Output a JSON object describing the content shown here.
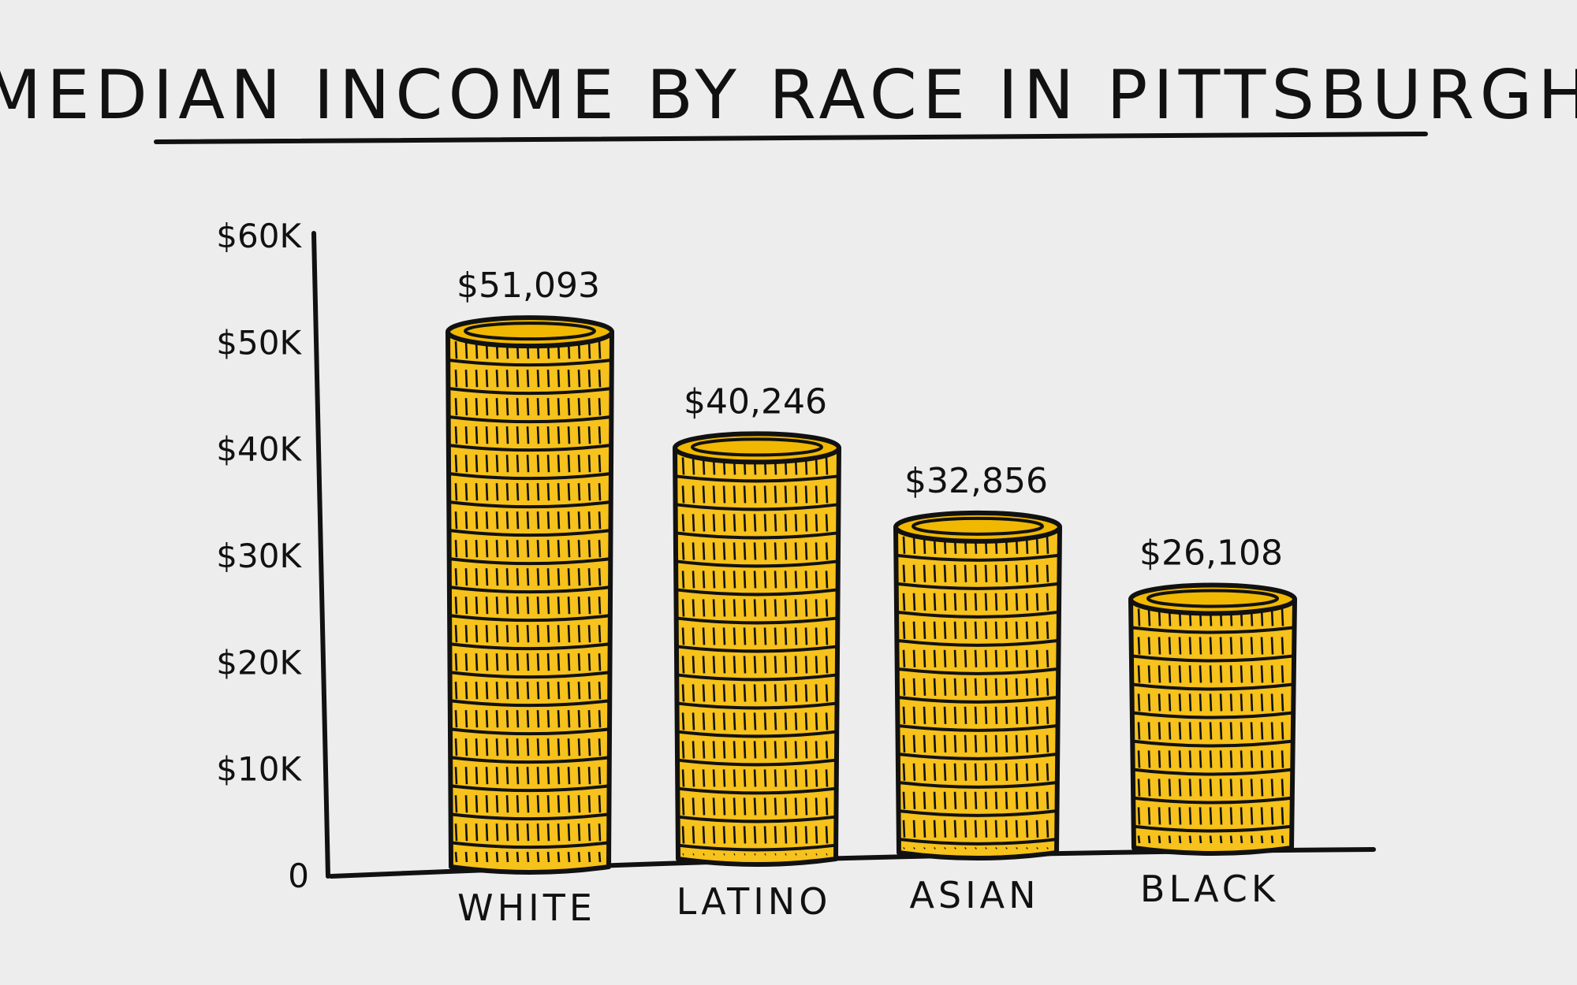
{
  "chart_data": {
    "type": "bar",
    "title": "MEDIAN INCOME BY RACE IN PITTSBURGH",
    "categories": [
      "WHITE",
      "LATINO",
      "ASIAN",
      "BLACK"
    ],
    "values": [
      51093,
      40246,
      32856,
      26108
    ],
    "value_labels": [
      "$51,093",
      "$40,246",
      "$32,856",
      "$26,108"
    ],
    "y_ticks": [
      0,
      10000,
      20000,
      30000,
      40000,
      50000,
      60000
    ],
    "y_tick_labels": [
      "0",
      "$10K",
      "$20K",
      "$30K",
      "$40K",
      "$50K",
      "$60K"
    ],
    "ylim": [
      0,
      60000
    ],
    "grid": false,
    "legend": "none",
    "colors": {
      "bar_fill": "#f6c21b",
      "bar_top": "#f0b800",
      "ink": "#111111",
      "background": "#ededed"
    }
  }
}
